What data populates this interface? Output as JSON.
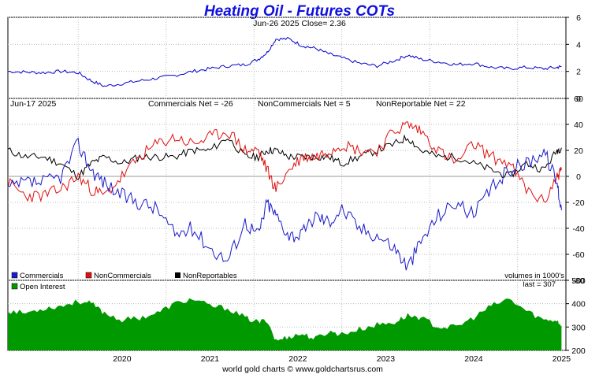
{
  "title": "Heating Oil - Futures COTs",
  "footer": "world gold charts © www.goldchartsrus.com",
  "colors": {
    "price": "#0000cc",
    "commercials": "#1a1acc",
    "noncommercials": "#e01010",
    "nonreportables": "#000000",
    "open_interest": "#009900",
    "title": "#1010e0"
  },
  "price_panel": {
    "header": "Jun-26  2025   Close= 2.36",
    "ylim": [
      0,
      6
    ],
    "yticks": [
      0,
      2,
      4,
      6
    ]
  },
  "cot_panel": {
    "date_label": "Jun-17  2025",
    "net_labels": [
      "Commercials Net = -26",
      "NonCommercials Net = 5",
      "NonReportable Net = 22"
    ],
    "ylim": [
      -80,
      60
    ],
    "yticks": [
      60,
      40,
      20,
      0,
      -20,
      -40,
      -60,
      -80
    ],
    "legend": [
      "Commercials",
      "NonCommercials",
      "NonReportables"
    ],
    "units_note": "volumes in 1000's"
  },
  "oi_panel": {
    "legend": "Open Interest",
    "last_label": "last = 307",
    "ylim": [
      200,
      500
    ],
    "yticks": [
      500,
      400,
      300,
      200
    ]
  },
  "x_axis": {
    "range": [
      2019.2,
      2025.55
    ],
    "years": [
      "2020",
      "2021",
      "2022",
      "2023",
      "2024",
      "2025"
    ]
  },
  "chart_data": {
    "type": "line",
    "x": [
      2019.2,
      2019.4,
      2019.6,
      2019.8,
      2020.0,
      2020.15,
      2020.3,
      2020.5,
      2020.7,
      2020.9,
      2021.1,
      2021.3,
      2021.5,
      2021.7,
      2021.9,
      2022.05,
      2022.15,
      2022.25,
      2022.4,
      2022.55,
      2022.7,
      2022.85,
      2023.0,
      2023.2,
      2023.4,
      2023.6,
      2023.75,
      2023.9,
      2024.1,
      2024.3,
      2024.5,
      2024.7,
      2024.9,
      2025.1,
      2025.3,
      2025.45,
      2025.5
    ],
    "series": [
      {
        "name": "Heating Oil Price",
        "values": [
          2.0,
          1.95,
          1.9,
          2.0,
          1.9,
          1.3,
          0.9,
          1.1,
          1.3,
          1.5,
          1.7,
          2.0,
          2.2,
          2.4,
          2.5,
          2.9,
          3.4,
          4.4,
          4.4,
          3.9,
          3.7,
          3.3,
          3.0,
          2.6,
          2.4,
          2.8,
          3.2,
          2.9,
          2.7,
          2.5,
          2.6,
          2.3,
          2.2,
          2.3,
          2.2,
          2.3,
          2.36
        ]
      },
      {
        "name": "Commercials",
        "values": [
          -10,
          -5,
          -5,
          0,
          25,
          5,
          -5,
          -15,
          -20,
          -25,
          -45,
          -40,
          -55,
          -65,
          -35,
          -45,
          -20,
          -30,
          -45,
          -45,
          -30,
          -35,
          -25,
          -40,
          -45,
          -55,
          -70,
          -50,
          -30,
          -20,
          -30,
          -10,
          5,
          10,
          20,
          -5,
          -26
        ]
      },
      {
        "name": "NonCommercials",
        "values": [
          -5,
          -15,
          -15,
          -10,
          0,
          -10,
          -15,
          0,
          15,
          25,
          30,
          25,
          30,
          35,
          20,
          20,
          5,
          -10,
          5,
          15,
          15,
          20,
          25,
          20,
          20,
          35,
          40,
          35,
          20,
          10,
          25,
          15,
          10,
          -10,
          -20,
          0,
          5
        ]
      },
      {
        "name": "NonReportables",
        "values": [
          20,
          15,
          15,
          10,
          0,
          10,
          15,
          10,
          15,
          15,
          15,
          20,
          20,
          30,
          15,
          15,
          20,
          20,
          15,
          15,
          15,
          15,
          10,
          15,
          20,
          25,
          30,
          20,
          15,
          15,
          10,
          5,
          0,
          10,
          5,
          20,
          22
        ]
      },
      {
        "name": "Open Interest",
        "values": [
          370,
          360,
          380,
          390,
          410,
          400,
          360,
          330,
          340,
          360,
          400,
          420,
          390,
          380,
          340,
          320,
          330,
          240,
          260,
          270,
          250,
          280,
          270,
          290,
          310,
          320,
          350,
          340,
          300,
          300,
          340,
          390,
          420,
          370,
          330,
          330,
          307
        ]
      }
    ]
  }
}
